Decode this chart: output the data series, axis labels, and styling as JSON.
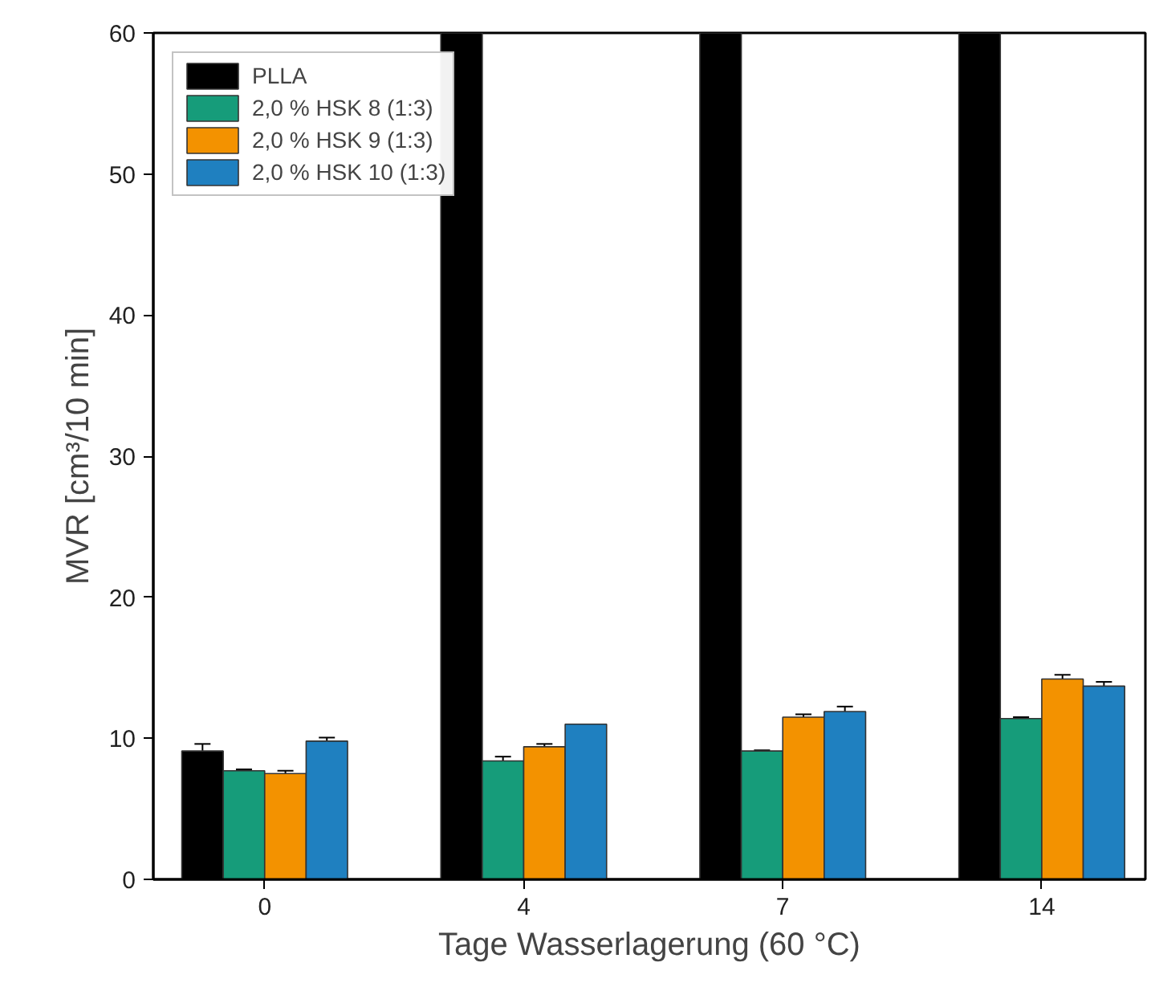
{
  "chart_data": {
    "type": "bar",
    "xlabel": "Tage Wasserlagerung (60 °C)",
    "ylabel": "MVR [cm³/10 min]",
    "categories": [
      "0",
      "4",
      "7",
      "14"
    ],
    "series": [
      {
        "name": "PLLA",
        "color": "#000000",
        "values": [
          9.1,
          60,
          60,
          60
        ],
        "errors": [
          0.5,
          null,
          null,
          null
        ]
      },
      {
        "name": "2,0 % HSK 8 (1:3)",
        "color": "#169c7a",
        "values": [
          7.7,
          8.4,
          9.1,
          11.4
        ],
        "errors": [
          0.1,
          0.3,
          0.05,
          0.1
        ]
      },
      {
        "name": "2,0 % HSK 9 (1:3)",
        "color": "#f39200",
        "values": [
          7.5,
          9.4,
          11.5,
          14.2
        ],
        "errors": [
          0.2,
          0.2,
          0.2,
          0.3
        ]
      },
      {
        "name": "2,0 % HSK 10 (1:3)",
        "color": "#1f80c0",
        "values": [
          9.8,
          11.0,
          11.9,
          13.7
        ],
        "errors": [
          0.25,
          null,
          0.35,
          0.3
        ]
      }
    ],
    "ylim": [
      0,
      60
    ],
    "yticks": [
      0,
      10,
      20,
      30,
      40,
      50,
      60
    ],
    "grid": false,
    "legend": "top left"
  }
}
